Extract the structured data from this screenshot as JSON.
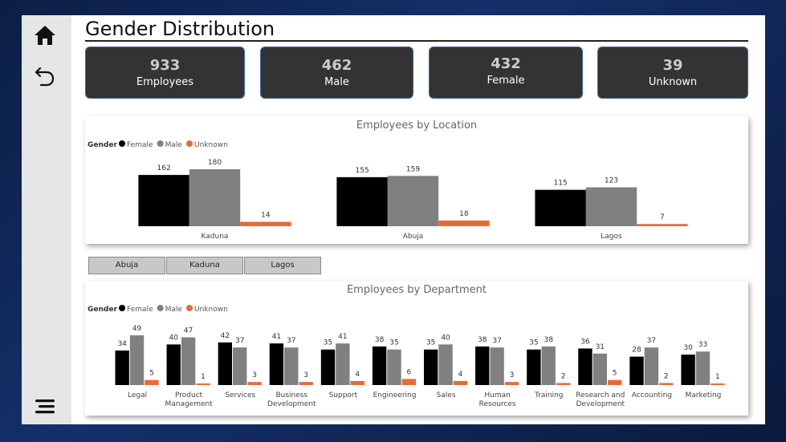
{
  "page": {
    "title": "Gender Distribution"
  },
  "kpis": [
    {
      "value": "933",
      "label": "Employees"
    },
    {
      "value": "462",
      "label": "Male"
    },
    {
      "value": "432",
      "label": "Female"
    },
    {
      "value": "39",
      "label": "Unknown"
    }
  ],
  "slicer": {
    "items": [
      "Abuja",
      "Kaduna",
      "Lagos"
    ]
  },
  "colors": {
    "Female": "#000000",
    "Male": "#808080",
    "Unknown": "#e66c37"
  },
  "chart_data": [
    {
      "type": "bar",
      "title": "Employees by Location",
      "legend": {
        "title": "Gender",
        "position": "top-left",
        "entries": [
          "Female",
          "Male",
          "Unknown"
        ]
      },
      "categories": [
        "Kaduna",
        "Abuja",
        "Lagos"
      ],
      "series": [
        {
          "name": "Female",
          "values": [
            162,
            155,
            115
          ]
        },
        {
          "name": "Male",
          "values": [
            180,
            159,
            123
          ]
        },
        {
          "name": "Unknown",
          "values": [
            14,
            18,
            7
          ]
        }
      ],
      "xlabel": "",
      "ylabel": "",
      "ylim": [
        0,
        190
      ],
      "grid": false
    },
    {
      "type": "bar",
      "title": "Employees by Department",
      "legend": {
        "title": "Gender",
        "position": "top-left",
        "entries": [
          "Female",
          "Male",
          "Unknown"
        ]
      },
      "categories": [
        "Legal",
        "Product Management",
        "Services",
        "Business Development",
        "Support",
        "Engineering",
        "Sales",
        "Human Resources",
        "Training",
        "Research and Development",
        "Accounting",
        "Marketing"
      ],
      "series": [
        {
          "name": "Female",
          "values": [
            34,
            40,
            42,
            41,
            35,
            38,
            35,
            38,
            35,
            36,
            28,
            30
          ]
        },
        {
          "name": "Male",
          "values": [
            49,
            47,
            37,
            37,
            41,
            35,
            40,
            37,
            38,
            31,
            37,
            33
          ]
        },
        {
          "name": "Unknown",
          "values": [
            5,
            1,
            3,
            3,
            4,
            6,
            4,
            3,
            2,
            5,
            2,
            1
          ]
        }
      ],
      "xlabel": "",
      "ylabel": "",
      "ylim": [
        0,
        52
      ],
      "grid": false
    }
  ]
}
